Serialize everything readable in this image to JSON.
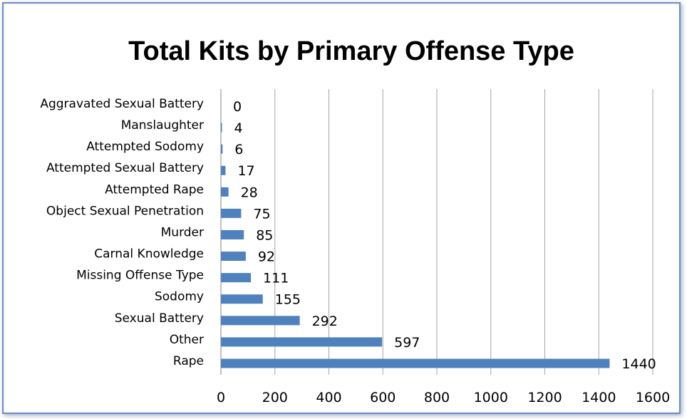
{
  "chart_data": {
    "type": "bar",
    "orientation": "horizontal",
    "title": "Total Kits by Primary Offense Type",
    "categories": [
      "Aggravated Sexual Battery",
      "Manslaughter",
      "Attempted Sodomy",
      "Attempted Sexual Battery",
      "Attempted Rape",
      "Object Sexual Penetration",
      "Murder",
      "Carnal Knowledge",
      "Missing Offense Type",
      "Sodomy",
      "Sexual Battery",
      "Other",
      "Rape"
    ],
    "values": [
      0,
      4,
      6,
      17,
      28,
      75,
      85,
      92,
      111,
      155,
      292,
      597,
      1440
    ],
    "xlim": [
      0,
      1600
    ],
    "xticks": [
      0,
      200,
      400,
      600,
      800,
      1000,
      1200,
      1400,
      1600
    ],
    "xlabel": "",
    "ylabel": "",
    "grid": "vertical",
    "legend": "none",
    "bar_color": "#4f81bd",
    "grid_color": "#a6a6a6"
  }
}
